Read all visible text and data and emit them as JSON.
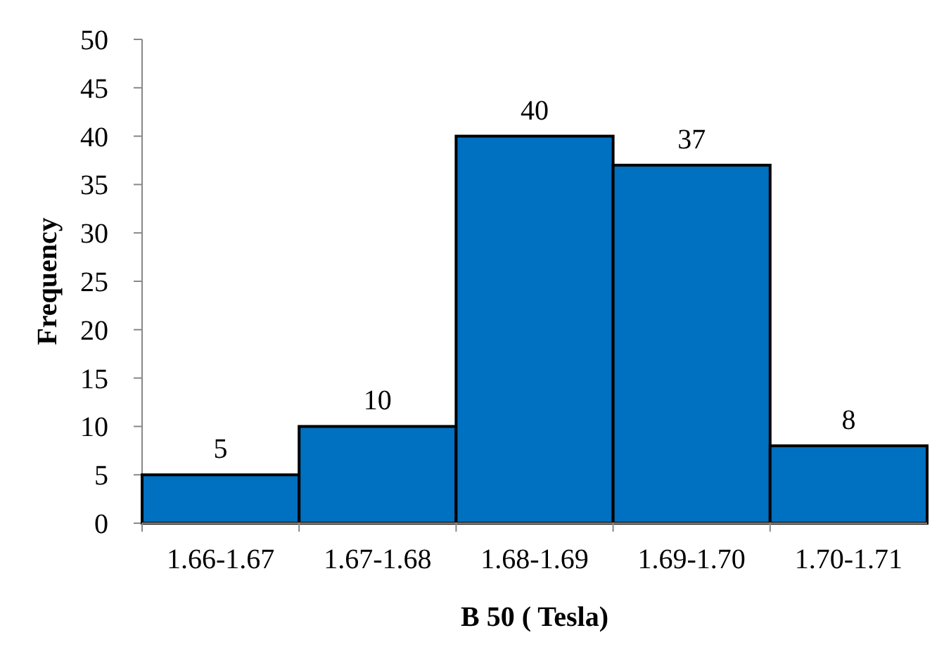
{
  "chart_data": {
    "type": "bar",
    "xlabel": "B 50 ( Tesla)",
    "ylabel": "Frequency",
    "categories": [
      "1.66-1.67",
      "1.67-1.68",
      "1.68-1.69",
      "1.69-1.70",
      "1.70-1.71"
    ],
    "values": [
      5,
      10,
      40,
      37,
      8
    ],
    "color": "#0070c0",
    "data_labels": true,
    "ylim": [
      0,
      50
    ],
    "yticks": [
      0,
      5,
      10,
      15,
      20,
      25,
      30,
      35,
      40,
      45,
      50
    ],
    "grid": false
  }
}
